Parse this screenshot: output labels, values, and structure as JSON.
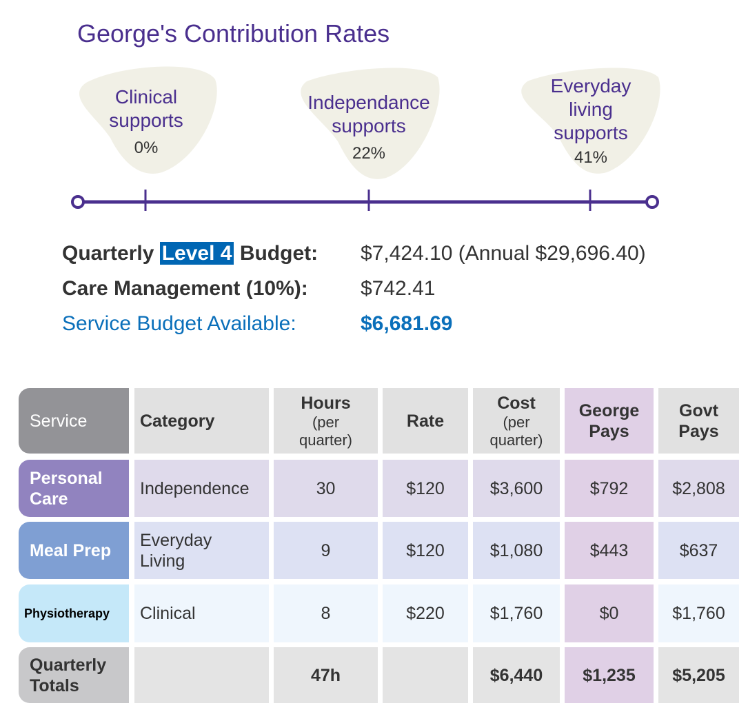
{
  "title": "George's Contribution Rates",
  "supports": [
    {
      "line1": "Clinical",
      "line2": "supports",
      "line3": "",
      "pct": "0%"
    },
    {
      "line1": "Independance",
      "line2": "supports",
      "line3": "",
      "pct": "22%"
    },
    {
      "line1": "Everyday",
      "line2": "living",
      "line3": "supports",
      "pct": "41%"
    }
  ],
  "budget": {
    "quarterly_pre": "Quarterly",
    "level": "Level 4",
    "quarterly_post": "Budget:",
    "quarterly_value": "$7,424.10 (Annual $29,696.40)",
    "care_label": "Care Management (10%):",
    "care_value": "$742.41",
    "service_label": "Service Budget Available:",
    "service_value": "$6,681.69"
  },
  "colors": {
    "accent": "#4a2f8e",
    "blue": "#0a6fba",
    "blob": "#f1f0e6"
  },
  "table": {
    "headers": {
      "service": "Service",
      "category": "Category",
      "hours": "Hours",
      "hours_sub": "(per quarter)",
      "rate": "Rate",
      "cost": "Cost",
      "cost_sub": "(per quarter)",
      "george": "George Pays",
      "govt": "Govt Pays"
    },
    "rows": [
      {
        "service": "Personal Care",
        "category": "Independence",
        "hours": "30",
        "rate": "$120",
        "cost": "$3,600",
        "george": "$792",
        "govt": "$2,808"
      },
      {
        "service": "Meal Prep",
        "category": "Everyday Living",
        "hours": "9",
        "rate": "$120",
        "cost": "$1,080",
        "george": "$443",
        "govt": "$637"
      },
      {
        "service": "Physiotherapy",
        "category": "Clinical",
        "hours": "8",
        "rate": "$220",
        "cost": "$1,760",
        "george": "$0",
        "govt": "$1,760"
      }
    ],
    "totals": {
      "label": "Quarterly Totals",
      "hours": "47h",
      "cost": "$6,440",
      "george": "$1,235",
      "govt": "$5,205"
    }
  }
}
